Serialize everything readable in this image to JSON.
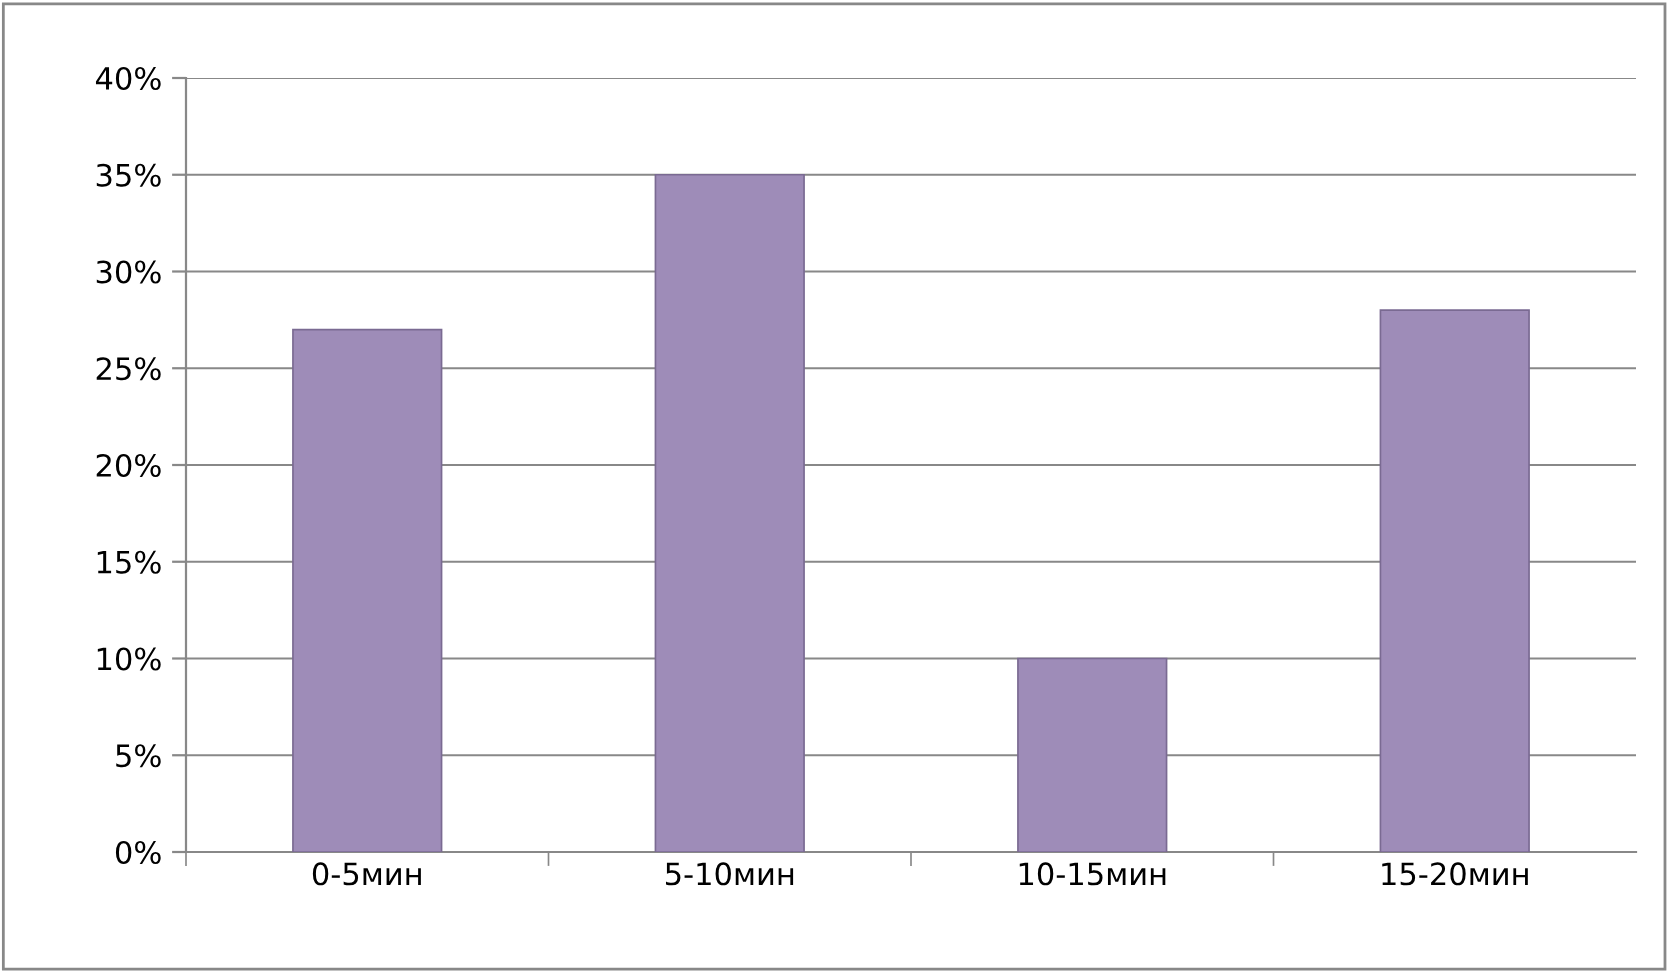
{
  "chart_data": {
    "type": "bar",
    "categories": [
      "0-5мин",
      "5-10мин",
      "10-15мин",
      "15-20мин"
    ],
    "values": [
      27,
      35,
      10,
      28
    ],
    "color": "#9e8cb8",
    "ylim": [
      0,
      40
    ],
    "yticks": [
      {
        "value": 0,
        "label": "0%"
      },
      {
        "value": 5,
        "label": "5%"
      },
      {
        "value": 10,
        "label": "10%"
      },
      {
        "value": 15,
        "label": "15%"
      },
      {
        "value": 20,
        "label": "20%"
      },
      {
        "value": 25,
        "label": "25%"
      },
      {
        "value": 30,
        "label": "30%"
      },
      {
        "value": 35,
        "label": "35%"
      },
      {
        "value": 40,
        "label": "40%"
      }
    ],
    "grid": "y",
    "legend": false
  }
}
